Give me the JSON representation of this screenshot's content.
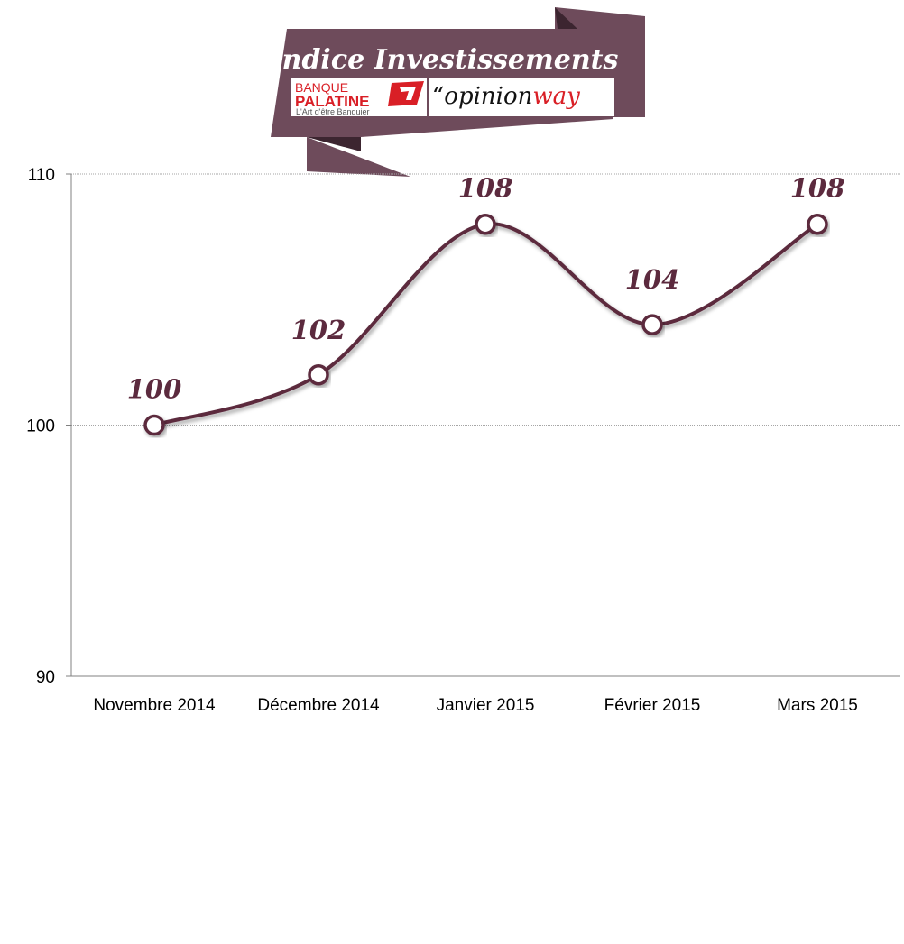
{
  "colors": {
    "series": "#5c2a3e",
    "banner": "#6e4b5b",
    "banner_dark": "#3c2530",
    "accent_red": "#d91f26"
  },
  "banner": {
    "title": "Indice Investissements",
    "logo_banque_palatine": {
      "line1": "BANQUE",
      "line2": "PALATINE",
      "tagline": "L'Art d'être Banquier"
    },
    "logo_opinionway": {
      "quote": "“",
      "part1": "opinion",
      "part2": "way"
    }
  },
  "chart_data": {
    "type": "line",
    "title": "Indice Investissements",
    "categories": [
      "Novembre 2014",
      "Décembre 2014",
      "Janvier 2015",
      "Février 2015",
      "Mars 2015"
    ],
    "values": [
      100,
      102,
      108,
      104,
      108
    ],
    "data_labels": [
      "100",
      "102",
      "108",
      "104",
      "108"
    ],
    "ylim": [
      90,
      110
    ],
    "yticks": [
      90,
      100,
      110
    ],
    "xlabel": "",
    "ylabel": "",
    "grid": true,
    "legend": "none",
    "smooth": true,
    "markers": "circle"
  }
}
